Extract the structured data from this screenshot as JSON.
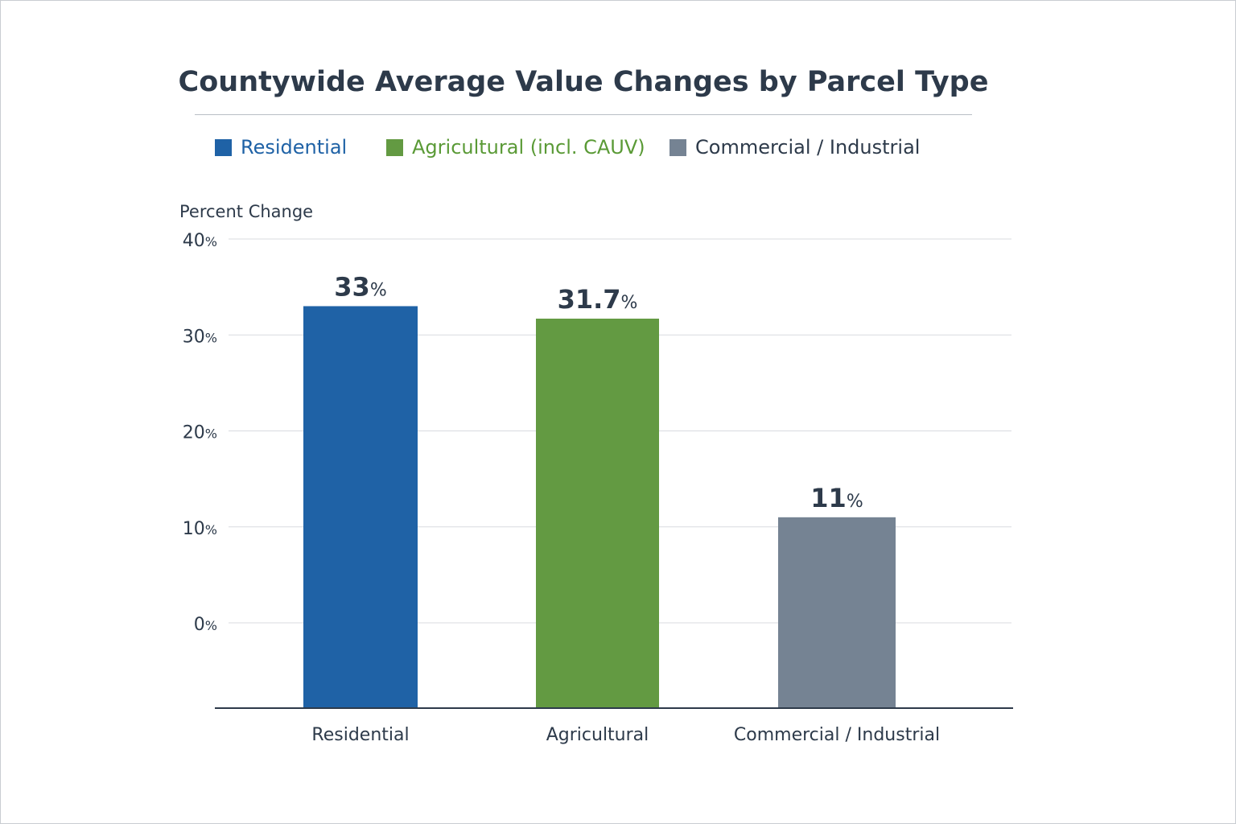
{
  "chart_data": {
    "type": "bar",
    "title": "Countywide Average Value Changes by Parcel Type",
    "ylabel": "Percent Change",
    "xlabel": "",
    "categories": [
      "Residential",
      "Agricultural",
      "Commercial / Industrial"
    ],
    "values": [
      33,
      31.7,
      11
    ],
    "data_labels": [
      "33",
      "31.7",
      "11"
    ],
    "data_label_suffix": "%",
    "colors": [
      "#1f62a6",
      "#639a42",
      "#758393"
    ],
    "legend": [
      {
        "label": "Residential",
        "color": "#1f62a6"
      },
      {
        "label": "Agricultural (incl. CAUV)",
        "color": "#639a42"
      },
      {
        "label": "Commercial / Industrial",
        "color": "#758393"
      }
    ],
    "legend_placement": "top",
    "yticks": [
      0,
      10,
      20,
      30,
      40
    ],
    "ytick_suffix": "%",
    "ylim": [
      0,
      40
    ],
    "grid": true
  }
}
